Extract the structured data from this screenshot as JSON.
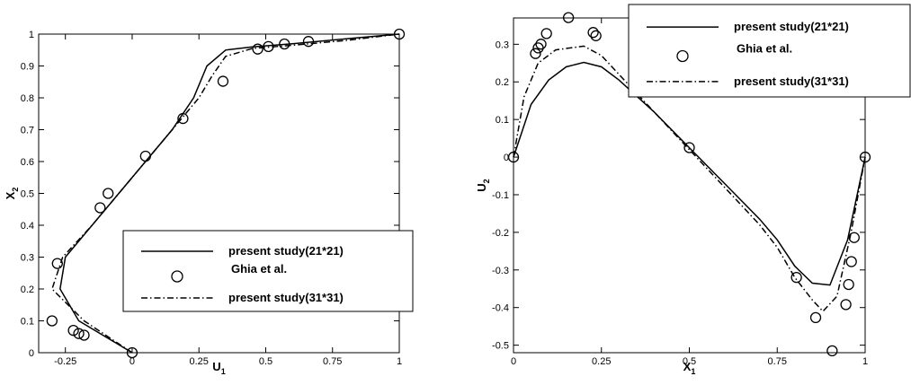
{
  "chart_data": [
    {
      "type": "line",
      "xlabel": "U",
      "xlabel_sub": "1",
      "ylabel": "X",
      "ylabel_sub": "2",
      "xlim": [
        -0.35,
        1.0
      ],
      "ylim": [
        0,
        1.0
      ],
      "xticks": [
        -0.25,
        0,
        0.25,
        0.5,
        0.75,
        1
      ],
      "xtick_labels": [
        "-0.25",
        "0",
        "0.25",
        "0.5",
        "0.75",
        "1"
      ],
      "yticks": [
        0,
        0.1,
        0.2,
        0.3,
        0.4,
        0.5,
        0.6,
        0.7,
        0.8,
        0.9,
        1
      ],
      "ytick_labels": [
        "0",
        "0.1",
        "0.2",
        "0.3",
        "0.4",
        "0.5",
        "0.6",
        "0.7",
        "0.8",
        "0.9",
        "1"
      ],
      "grid": false,
      "legend_position": "bottom-right",
      "series": [
        {
          "name": "present study(21*21)",
          "style": "solid",
          "x": [
            0,
            -0.2,
            -0.27,
            -0.25,
            -0.15,
            -0.05,
            0.05,
            0.15,
            0.23,
            0.28,
            0.35,
            0.45,
            0.6,
            0.8,
            1.0
          ],
          "y": [
            0,
            0.1,
            0.2,
            0.3,
            0.4,
            0.5,
            0.6,
            0.7,
            0.8,
            0.9,
            0.95,
            0.96,
            0.97,
            0.985,
            1.0
          ]
        },
        {
          "name": "Ghia et al.",
          "style": "circle",
          "x": [
            0,
            -0.18,
            -0.2,
            -0.22,
            -0.3,
            -0.28,
            -0.12,
            -0.09,
            0.05,
            0.19,
            0.34,
            0.47,
            0.51,
            0.57,
            0.66,
            1.0
          ],
          "y": [
            0,
            0.055,
            0.06,
            0.07,
            0.1,
            0.28,
            0.455,
            0.5,
            0.617,
            0.735,
            0.852,
            0.953,
            0.961,
            0.969,
            0.977,
            1.0
          ]
        },
        {
          "name": "present study(31*31)",
          "style": "dashdot",
          "x": [
            0,
            -0.18,
            -0.3,
            -0.26,
            -0.15,
            -0.05,
            0.05,
            0.15,
            0.25,
            0.3,
            0.35,
            0.45,
            0.6,
            0.8,
            1.0
          ],
          "y": [
            0,
            0.1,
            0.2,
            0.3,
            0.4,
            0.5,
            0.6,
            0.7,
            0.8,
            0.87,
            0.93,
            0.955,
            0.965,
            0.98,
            1.0
          ]
        }
      ]
    },
    {
      "type": "line",
      "xlabel": "X",
      "xlabel_sub": "1",
      "ylabel": "U",
      "ylabel_sub": "2",
      "xlim": [
        0,
        1.0
      ],
      "ylim": [
        -0.52,
        0.37
      ],
      "xticks": [
        0,
        0.25,
        0.5,
        0.75,
        1
      ],
      "xtick_labels": [
        "0",
        "0.25",
        "0.5",
        "0.75",
        "1"
      ],
      "yticks": [
        -0.5,
        -0.4,
        -0.3,
        -0.2,
        -0.1,
        0,
        0.1,
        0.2,
        0.3
      ],
      "ytick_labels": [
        "-0.5",
        "-0.4",
        "-0.3",
        "-0.2",
        "-0.1",
        "0",
        "0.1",
        "0.2",
        "0.3"
      ],
      "grid": false,
      "legend_position": "top-right",
      "series": [
        {
          "name": "present study(21*21)",
          "style": "solid",
          "x": [
            0,
            0.05,
            0.1,
            0.15,
            0.2,
            0.25,
            0.3,
            0.4,
            0.5,
            0.6,
            0.7,
            0.75,
            0.8,
            0.85,
            0.9,
            0.95,
            1.0
          ],
          "y": [
            0,
            0.14,
            0.205,
            0.24,
            0.252,
            0.24,
            0.205,
            0.12,
            0.025,
            -0.07,
            -0.165,
            -0.22,
            -0.29,
            -0.335,
            -0.34,
            -0.22,
            0
          ]
        },
        {
          "name": "Ghia et al.",
          "style": "circle",
          "x": [
            0,
            0.0625,
            0.0703,
            0.0781,
            0.0938,
            0.1563,
            0.2266,
            0.2344,
            0.5,
            0.8047,
            0.8594,
            0.9063,
            0.9453,
            0.9531,
            0.9609,
            0.9688,
            1.0
          ],
          "y": [
            0,
            0.2753,
            0.2903,
            0.3004,
            0.3286,
            0.3709,
            0.3314,
            0.3227,
            0.0253,
            -0.3199,
            -0.4267,
            -0.515,
            -0.392,
            -0.3386,
            -0.2779,
            -0.2139,
            0
          ]
        },
        {
          "name": "present study(31*31)",
          "style": "dashdot",
          "x": [
            0,
            0.03,
            0.07,
            0.12,
            0.2,
            0.25,
            0.3,
            0.4,
            0.5,
            0.6,
            0.7,
            0.75,
            0.8,
            0.85,
            0.88,
            0.92,
            0.96,
            1.0
          ],
          "y": [
            0,
            0.16,
            0.25,
            0.285,
            0.295,
            0.27,
            0.22,
            0.12,
            0.02,
            -0.08,
            -0.18,
            -0.24,
            -0.32,
            -0.38,
            -0.41,
            -0.37,
            -0.2,
            0
          ]
        }
      ]
    }
  ]
}
